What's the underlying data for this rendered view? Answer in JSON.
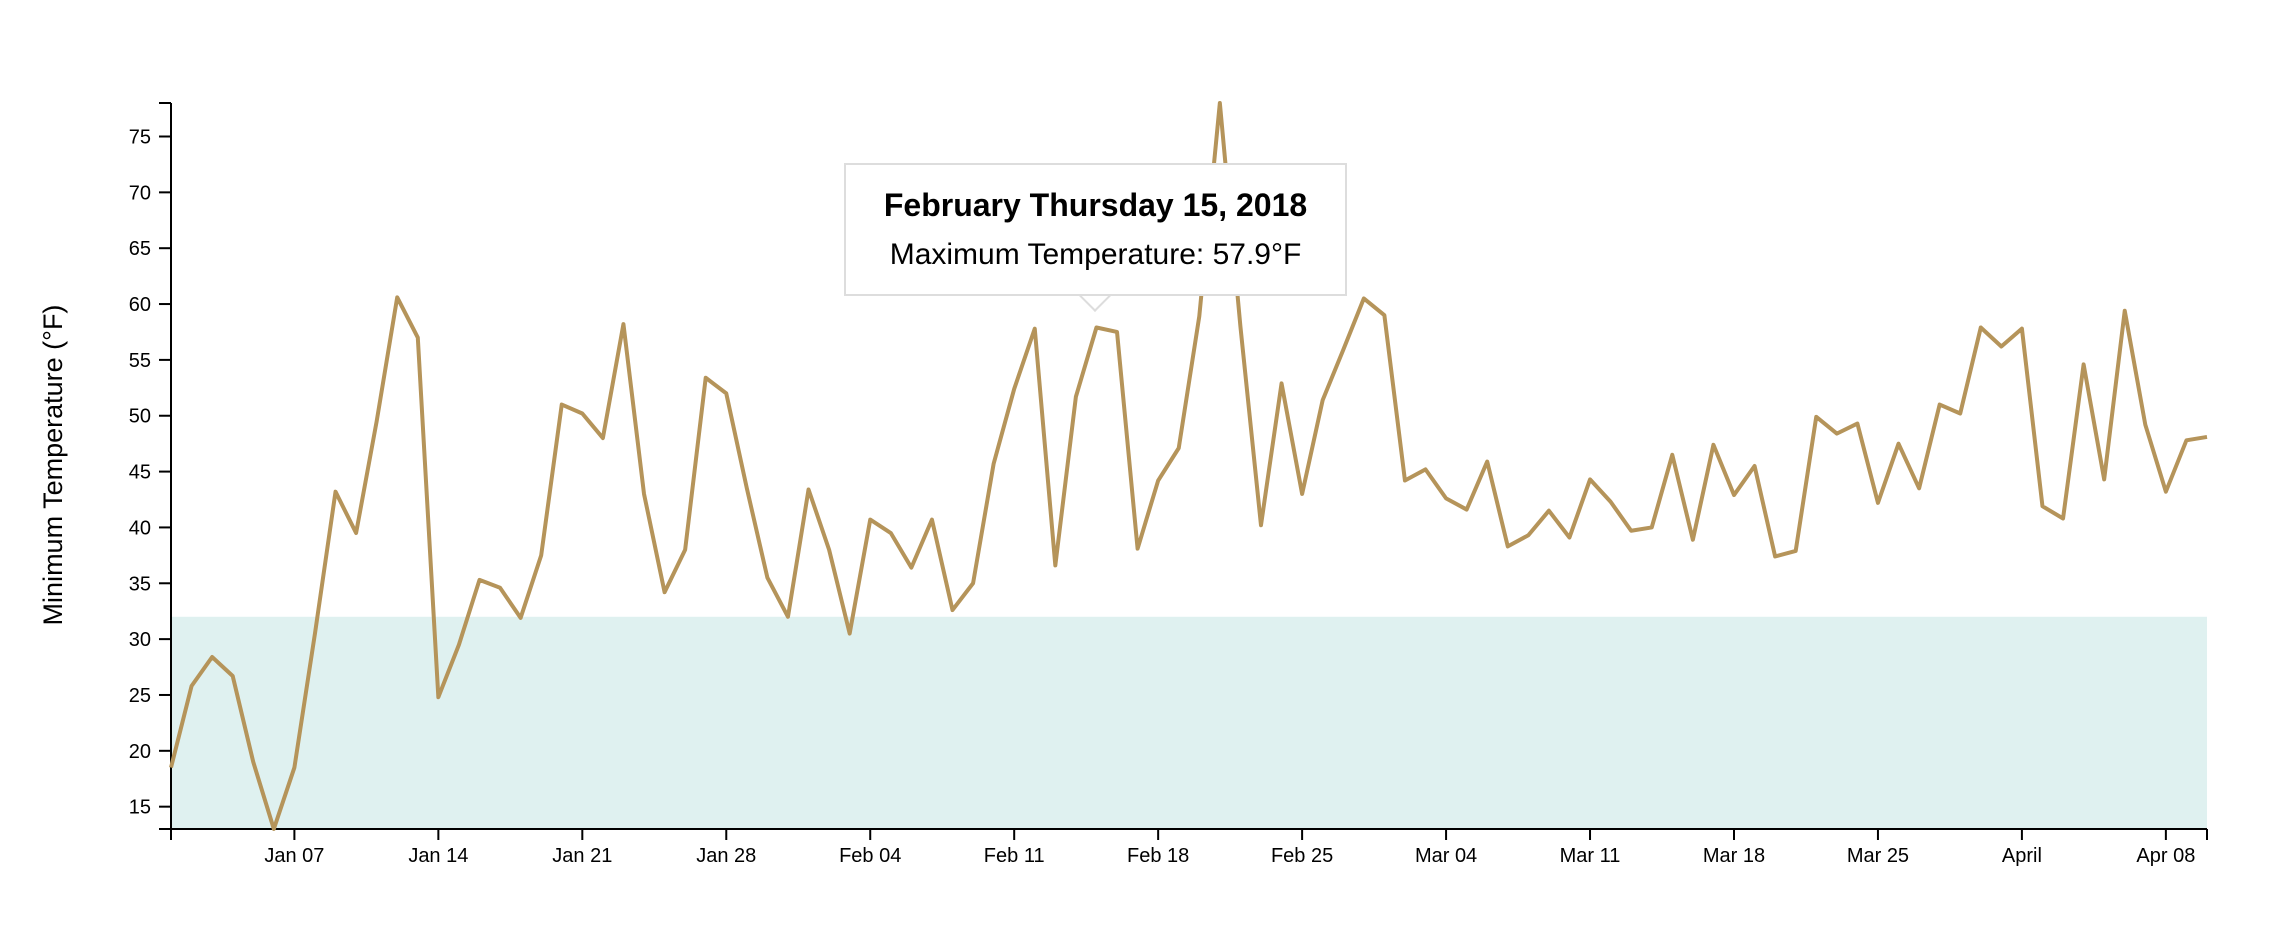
{
  "chart_data": {
    "type": "line",
    "ylabel": "Minimum Temperature (°F)",
    "ylim": [
      13,
      78
    ],
    "yticks": [
      15,
      20,
      25,
      30,
      35,
      40,
      45,
      50,
      55,
      60,
      65,
      70,
      75
    ],
    "xlim": [
      "2018-01-01",
      "2018-04-10"
    ],
    "xticks": [
      {
        "date": "2018-01-07",
        "label": "Jan 07"
      },
      {
        "date": "2018-01-14",
        "label": "Jan 14"
      },
      {
        "date": "2018-01-21",
        "label": "Jan 21"
      },
      {
        "date": "2018-01-28",
        "label": "Jan 28"
      },
      {
        "date": "2018-02-04",
        "label": "Feb 04"
      },
      {
        "date": "2018-02-11",
        "label": "Feb 11"
      },
      {
        "date": "2018-02-18",
        "label": "Feb 18"
      },
      {
        "date": "2018-02-25",
        "label": "Feb 25"
      },
      {
        "date": "2018-03-04",
        "label": "Mar 04"
      },
      {
        "date": "2018-03-11",
        "label": "Mar 11"
      },
      {
        "date": "2018-03-18",
        "label": "Mar 18"
      },
      {
        "date": "2018-03-25",
        "label": "Mar 25"
      },
      {
        "date": "2018-04-01",
        "label": "April"
      },
      {
        "date": "2018-04-08",
        "label": "Apr 08"
      }
    ],
    "freezing_band": [
      13,
      32
    ],
    "line_color": "#b5945a",
    "band_color": "#dff1f0",
    "x": [
      "2018-01-01",
      "2018-01-02",
      "2018-01-03",
      "2018-01-04",
      "2018-01-05",
      "2018-01-06",
      "2018-01-07",
      "2018-01-08",
      "2018-01-09",
      "2018-01-10",
      "2018-01-11",
      "2018-01-12",
      "2018-01-13",
      "2018-01-14",
      "2018-01-15",
      "2018-01-16",
      "2018-01-17",
      "2018-01-18",
      "2018-01-19",
      "2018-01-20",
      "2018-01-21",
      "2018-01-22",
      "2018-01-23",
      "2018-01-24",
      "2018-01-25",
      "2018-01-26",
      "2018-01-27",
      "2018-01-28",
      "2018-01-29",
      "2018-01-30",
      "2018-01-31",
      "2018-02-01",
      "2018-02-02",
      "2018-02-03",
      "2018-02-04",
      "2018-02-05",
      "2018-02-06",
      "2018-02-07",
      "2018-02-08",
      "2018-02-09",
      "2018-02-10",
      "2018-02-11",
      "2018-02-12",
      "2018-02-13",
      "2018-02-14",
      "2018-02-15",
      "2018-02-16",
      "2018-02-17",
      "2018-02-18",
      "2018-02-19",
      "2018-02-20",
      "2018-02-21",
      "2018-02-22",
      "2018-02-23",
      "2018-02-24",
      "2018-02-25",
      "2018-02-26",
      "2018-02-27",
      "2018-02-28",
      "2018-03-01",
      "2018-03-02",
      "2018-03-03",
      "2018-03-04",
      "2018-03-05",
      "2018-03-06",
      "2018-03-07",
      "2018-03-08",
      "2018-03-09",
      "2018-03-10",
      "2018-03-11",
      "2018-03-12",
      "2018-03-13",
      "2018-03-14",
      "2018-03-15",
      "2018-03-16",
      "2018-03-17",
      "2018-03-18",
      "2018-03-19",
      "2018-03-20",
      "2018-03-21",
      "2018-03-22",
      "2018-03-23",
      "2018-03-24",
      "2018-03-25",
      "2018-03-26",
      "2018-03-27",
      "2018-03-28",
      "2018-03-29",
      "2018-03-30",
      "2018-03-31",
      "2018-04-01",
      "2018-04-02",
      "2018-04-03",
      "2018-04-04",
      "2018-04-05",
      "2018-04-06",
      "2018-04-07",
      "2018-04-08",
      "2018-04-09",
      "2018-04-10"
    ],
    "y": [
      18.5,
      25.8,
      28.4,
      26.7,
      19.0,
      13.0,
      18.5,
      30.5,
      43.2,
      39.5,
      49.5,
      60.6,
      57.0,
      24.8,
      29.5,
      35.3,
      34.6,
      31.9,
      37.5,
      51.0,
      50.2,
      48.0,
      58.2,
      43.0,
      34.2,
      38.0,
      53.4,
      52.0,
      43.5,
      35.5,
      32.0,
      43.4,
      38.0,
      30.5,
      40.7,
      39.5,
      36.4,
      40.7,
      32.6,
      35.0,
      45.7,
      52.4,
      57.8,
      36.6,
      51.7,
      57.9,
      57.5,
      38.1,
      44.2,
      47.1,
      58.9,
      78.0,
      58.0,
      40.2,
      52.9,
      43.0,
      51.4,
      55.9,
      60.5,
      59.0,
      44.2,
      45.2,
      42.6,
      41.6,
      45.9,
      38.3,
      39.3,
      41.5,
      39.1,
      44.3,
      42.3,
      39.7,
      40.0,
      46.5,
      38.9,
      47.4,
      42.9,
      45.5,
      37.4,
      37.9,
      49.9,
      48.4,
      49.3,
      42.2,
      47.5,
      43.5,
      51.0,
      50.2,
      57.9,
      56.2,
      57.8,
      41.9,
      40.8,
      54.6,
      44.3,
      59.4,
      49.2,
      43.2,
      47.8,
      48.1
    ]
  },
  "tooltip": {
    "date_label": "February Thursday 15, 2018",
    "value_label": "Maximum Temperature: 57.9°F"
  }
}
